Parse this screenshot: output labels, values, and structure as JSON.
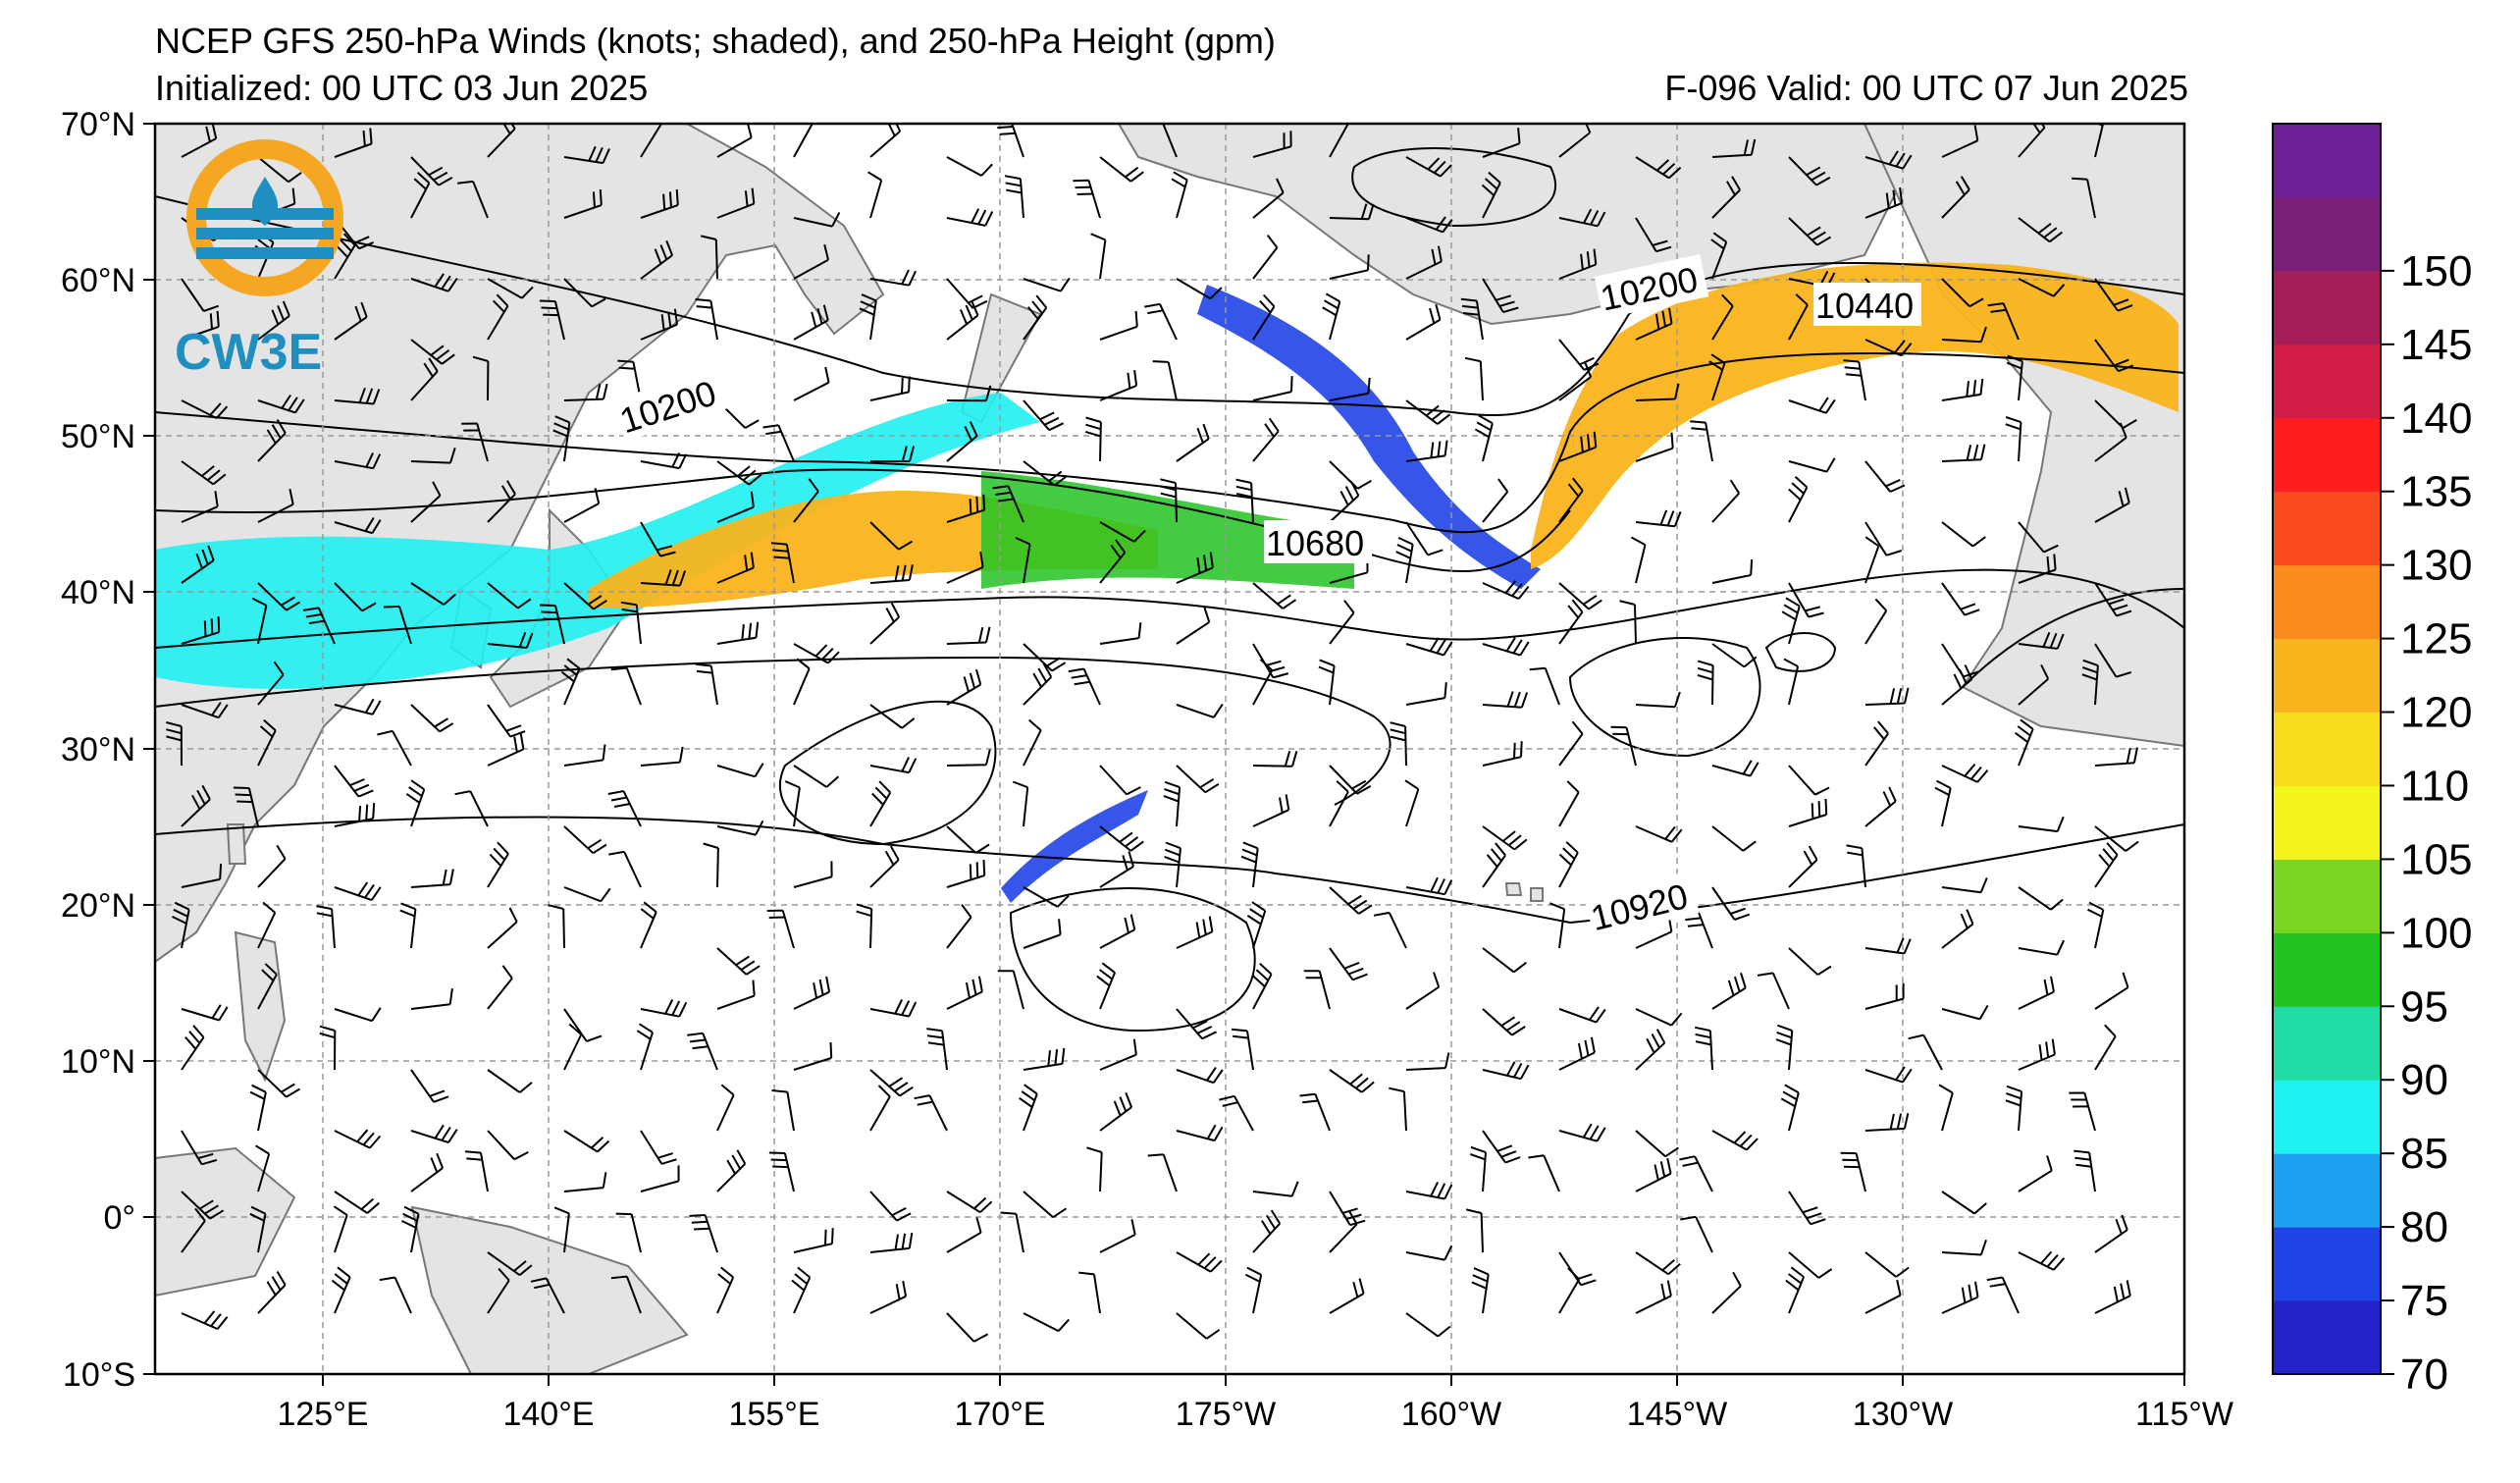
{
  "header": {
    "title": "NCEP GFS 250-hPa Winds (knots; shaded), and 250-hPa Height (gpm)",
    "initialized": "Initialized: 00 UTC 03 Jun 2025",
    "valid": "F-096  Valid: 00 UTC 07 Jun 2025"
  },
  "logo": {
    "text": "CW3E",
    "colors": {
      "ring": "#f5a623",
      "blue": "#1f8fc1"
    }
  },
  "map": {
    "lat_labels": [
      "70°N",
      "60°N",
      "50°N",
      "40°N",
      "30°N",
      "20°N",
      "10°N",
      "0°",
      "10°S"
    ],
    "lon_labels": [
      "125°E",
      "140°E",
      "155°E",
      "170°E",
      "175°W",
      "160°W",
      "145°W",
      "130°W",
      "115°W"
    ],
    "lat_range": [
      -10,
      70
    ],
    "lon_range_deg_east": [
      110,
      245
    ],
    "land_color": "#e4e4e4",
    "grid": "dashed gray",
    "contour_labels": [
      "10200",
      "10200",
      "10440",
      "10680",
      "10920"
    ]
  },
  "colorbar": {
    "ticks": [
      "70",
      "75",
      "80",
      "85",
      "90",
      "95",
      "100",
      "105",
      "110",
      "120",
      "125",
      "130",
      "135",
      "140",
      "145",
      "150"
    ],
    "colors": [
      "#2222c8",
      "#1f44e6",
      "#1fa0f0",
      "#1ff0f0",
      "#22dca5",
      "#22c322",
      "#7ad622",
      "#f5f51e",
      "#fadc1e",
      "#fab41e",
      "#fa8c1e",
      "#fa4b1e",
      "#ff1e1e",
      "#d21e46",
      "#a51e5a",
      "#7a1e78",
      "#6e1e96"
    ]
  }
}
